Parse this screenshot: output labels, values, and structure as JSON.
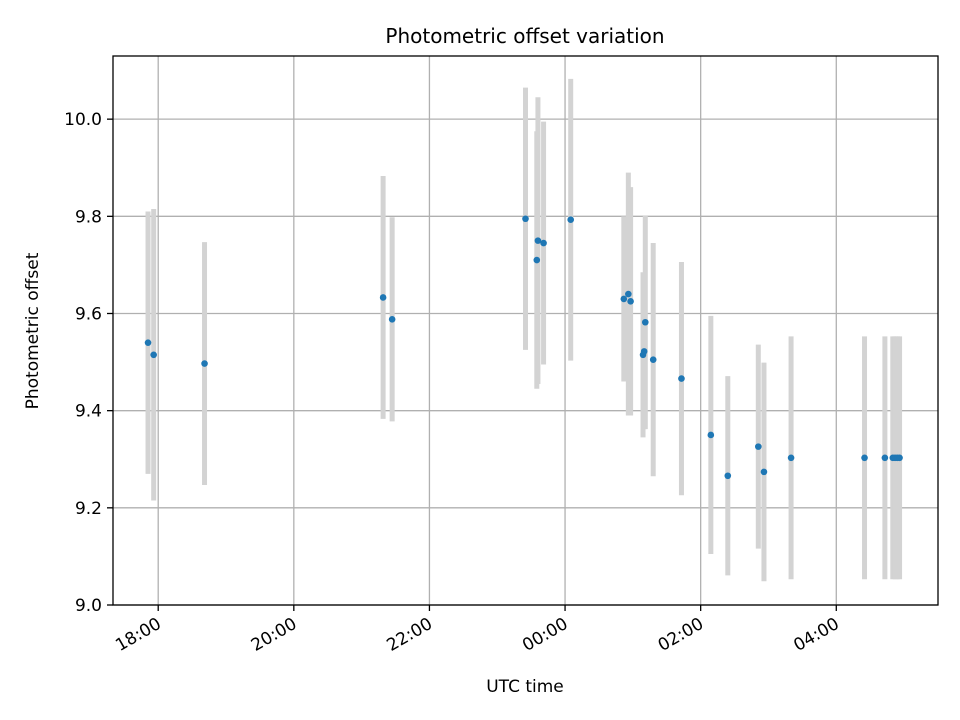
{
  "chart_data": {
    "type": "scatter",
    "title": "Photometric offset variation",
    "xlabel": "UTC time",
    "ylabel": "Photometric offset",
    "x_tick_labels": [
      "18:00",
      "20:00",
      "22:00",
      "00:00",
      "02:00",
      "04:00"
    ],
    "x_tick_hours": [
      18,
      20,
      22,
      24,
      26,
      28
    ],
    "y_tick_labels": [
      "9.0",
      "9.2",
      "9.4",
      "9.6",
      "9.8",
      "10.0"
    ],
    "y_ticks": [
      9.0,
      9.2,
      9.4,
      9.6,
      9.8,
      10.0
    ],
    "xlim": [
      "17:20",
      "05:30"
    ],
    "ylim": [
      9.0,
      10.13
    ],
    "grid": true,
    "series": [
      {
        "color": "#1f77b4",
        "error_color": "#d3d3d3",
        "points": [
          {
            "time": "17:51",
            "y": 9.54,
            "err": 0.27
          },
          {
            "time": "17:56",
            "y": 9.515,
            "err": 0.3
          },
          {
            "time": "18:41",
            "y": 9.497,
            "err": 0.25
          },
          {
            "time": "21:19",
            "y": 9.633,
            "err": 0.25
          },
          {
            "time": "21:27",
            "y": 9.588,
            "err": 0.21
          },
          {
            "time": "23:25",
            "y": 9.795,
            "err": 0.27
          },
          {
            "time": "23:35",
            "y": 9.71,
            "err": 0.265
          },
          {
            "time": "23:36",
            "y": 9.75,
            "err": 0.295
          },
          {
            "time": "23:41",
            "y": 9.745,
            "err": 0.25
          },
          {
            "time": "00:05",
            "y": 9.793,
            "err": 0.29
          },
          {
            "time": "00:52",
            "y": 9.63,
            "err": 0.17
          },
          {
            "time": "00:56",
            "y": 9.64,
            "err": 0.25
          },
          {
            "time": "00:58",
            "y": 9.625,
            "err": 0.235
          },
          {
            "time": "01:09",
            "y": 9.515,
            "err": 0.17
          },
          {
            "time": "01:10",
            "y": 9.522,
            "err": 0.16
          },
          {
            "time": "01:11",
            "y": 9.582,
            "err": 0.22
          },
          {
            "time": "01:18",
            "y": 9.505,
            "err": 0.24
          },
          {
            "time": "01:43",
            "y": 9.466,
            "err": 0.24
          },
          {
            "time": "02:09",
            "y": 9.35,
            "err": 0.245
          },
          {
            "time": "02:24",
            "y": 9.266,
            "err": 0.205
          },
          {
            "time": "02:51",
            "y": 9.326,
            "err": 0.21
          },
          {
            "time": "02:56",
            "y": 9.274,
            "err": 0.225
          },
          {
            "time": "03:20",
            "y": 9.303,
            "err": 0.25
          },
          {
            "time": "04:25",
            "y": 9.303,
            "err": 0.25
          },
          {
            "time": "04:43",
            "y": 9.303,
            "err": 0.25
          },
          {
            "time": "04:50",
            "y": 9.303,
            "err": 0.25
          },
          {
            "time": "04:52",
            "y": 9.303,
            "err": 0.25
          },
          {
            "time": "04:54",
            "y": 9.303,
            "err": 0.25
          },
          {
            "time": "04:56",
            "y": 9.303,
            "err": 0.25
          }
        ]
      }
    ]
  }
}
